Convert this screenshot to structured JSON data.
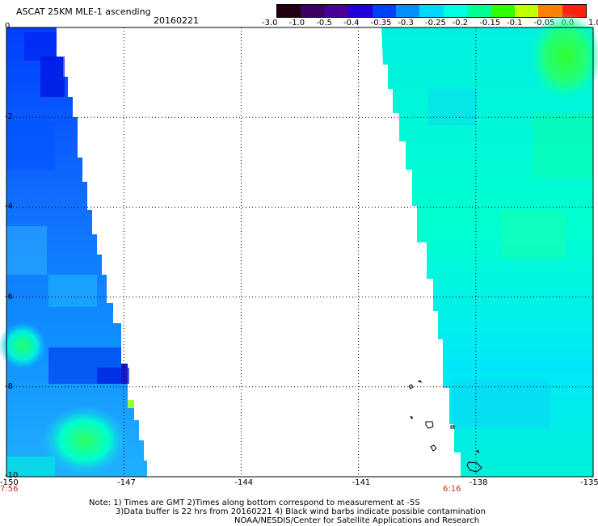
{
  "header": {
    "title": "ASCAT 25KM MLE-1 ascending",
    "date": "20160221"
  },
  "colorbar": {
    "labels": [
      "-3.0",
      "-1.0",
      "-0.5",
      "-0.4",
      "-0.35",
      "-0.3",
      "-0.25",
      "-0.2",
      "-0.15",
      "-0.1",
      "-0.05",
      "0.0",
      "1.0"
    ],
    "colors": [
      "#200010",
      "#3c0060",
      "#4a0098",
      "#2000d8",
      "#0040ff",
      "#0090ff",
      "#00d8ff",
      "#00ffe0",
      "#00ff90",
      "#30ff00",
      "#c0ff00",
      "#ff8000",
      "#ff2010"
    ]
  },
  "map": {
    "xaxis": {
      "ticks": [
        "-150",
        "-147",
        "-144",
        "-141",
        "-138",
        "-135"
      ],
      "range": [
        -150,
        -135
      ]
    },
    "yaxis": {
      "ticks": [
        "0",
        "-2",
        "-4",
        "-6",
        "-8",
        "-10"
      ],
      "range": [
        0,
        -10
      ]
    },
    "pass_times": [
      "7:56",
      "6:16"
    ],
    "swath_colors": {
      "deep_blue": "#0010e8",
      "blue": "#1060ff",
      "cyan_blue": "#10b0ff",
      "cyan": "#00f0f0",
      "aqua_green": "#00ffb0",
      "green": "#20ff40"
    }
  },
  "notes": {
    "line1": "Note: 1) Times are GMT 2)Times along bottom correspond to measurement at -5S",
    "line2": "3)Data buffer is 22 hrs from 20160221 4) Black wind barbs indicate possible contamination",
    "line3": "NOAA/NESDIS/Center for Satellite Applications and Research"
  }
}
